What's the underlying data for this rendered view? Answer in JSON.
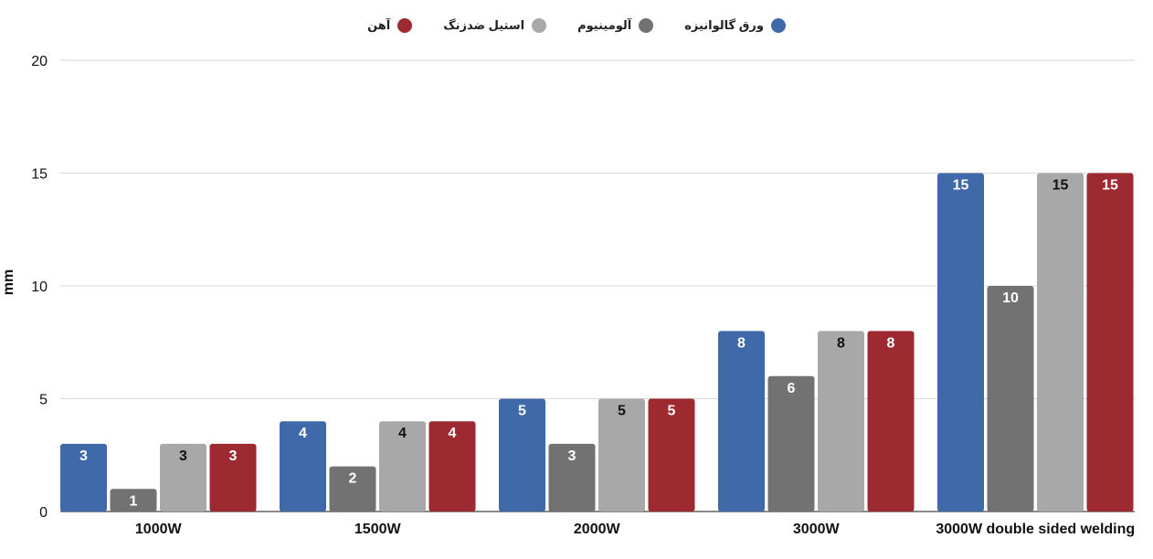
{
  "chart_data": {
    "type": "bar",
    "categories": [
      "1000W",
      "1500W",
      "2000W",
      "3000W",
      "3000W double sided welding"
    ],
    "series": [
      {
        "name": "ورق گالوانیزه",
        "color": "#4069a9",
        "label_color": "#ffffff",
        "values": [
          3,
          4,
          5,
          8,
          15
        ]
      },
      {
        "name": "آلومینیوم",
        "color": "#727272",
        "label_color": "#ffffff",
        "values": [
          1,
          2,
          3,
          6,
          10
        ]
      },
      {
        "name": "استیل ضدزنگ",
        "color": "#a8a8a8",
        "label_color": "#111111",
        "values": [
          3,
          4,
          5,
          8,
          15
        ]
      },
      {
        "name": "آهن",
        "color": "#9c2a30",
        "label_color": "#ffffff",
        "values": [
          3,
          4,
          5,
          8,
          15
        ]
      }
    ],
    "ylabel": "mm",
    "ylim": [
      0,
      20
    ],
    "yticks": [
      0,
      5,
      10,
      15,
      20
    ],
    "grid": true,
    "legend_position": "top"
  }
}
